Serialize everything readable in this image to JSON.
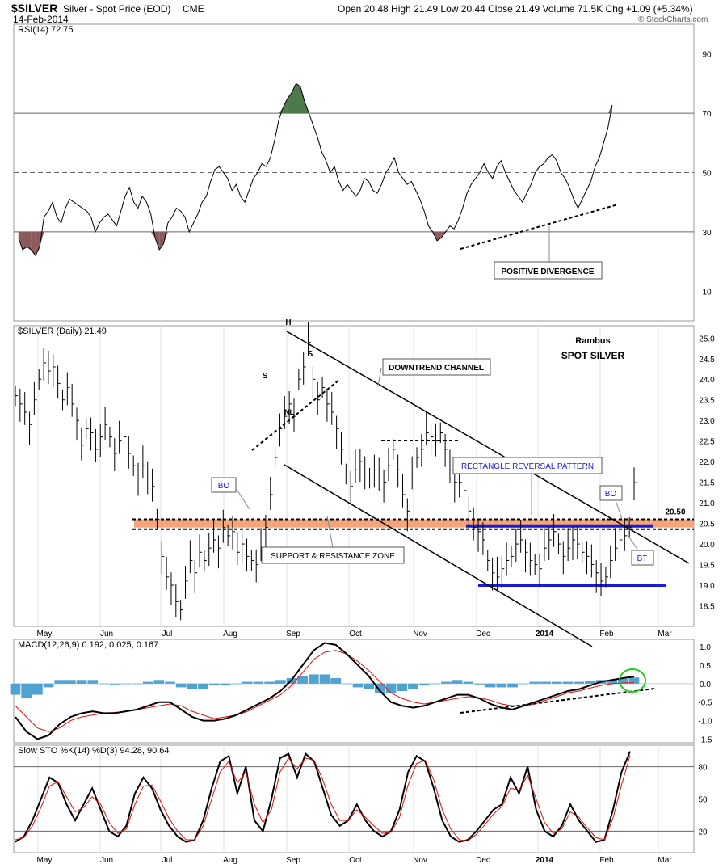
{
  "header": {
    "symbol": "$SILVER",
    "name": "Silver - Spot Price (EOD)",
    "exchange": "CME",
    "date": "14-Feb-2014",
    "quote": "Open 20.48  High 21.49  Low 20.44  Close 21.49  Volume 71.5K  Chg +1.09 (+5.34%)",
    "watermark": "© StockCharts.com"
  },
  "colors": {
    "grid": "#bbbbbb",
    "price_bar": "#000000",
    "rsi_overbought_fill": "#4d7a4d",
    "rsi_oversold_fill": "#8b5a5a",
    "support_zone": "#f4a57a",
    "rectangle": "#1a1adb",
    "macd_hist": "#4fa3d1",
    "signal_line": "#e01010",
    "circle": "#22cc22"
  },
  "chart_data": [
    {
      "id": "rsi",
      "type": "line",
      "title": "RSI(14) 72.75",
      "ylim": [
        0,
        100
      ],
      "y_ticks": [
        "90",
        "70",
        "50",
        "30",
        "10"
      ],
      "reference_lines": [
        70,
        50,
        30
      ],
      "series": [
        {
          "name": "RSI(14)",
          "values": [
            28,
            24,
            25,
            24,
            22,
            25,
            35,
            37,
            40,
            35,
            33,
            38,
            41,
            40,
            39,
            38,
            37,
            35,
            30,
            33,
            35,
            36,
            34,
            32,
            37,
            42,
            45,
            40,
            38,
            42,
            40,
            36,
            28,
            24,
            26,
            33,
            35,
            38,
            37,
            35,
            30,
            33,
            36,
            40,
            42,
            47,
            51,
            52,
            50,
            48,
            44,
            46,
            42,
            40,
            44,
            48,
            50,
            53,
            52,
            55,
            61,
            68,
            72,
            75,
            77,
            80,
            79,
            74,
            70,
            66,
            62,
            57,
            54,
            50,
            52,
            47,
            44,
            46,
            44,
            42,
            44,
            48,
            47,
            44,
            43,
            46,
            50,
            52,
            55,
            50,
            48,
            46,
            47,
            44,
            41,
            37,
            32,
            30,
            27,
            28,
            30,
            32,
            31,
            34,
            38,
            43,
            46,
            48,
            50,
            53,
            50,
            48,
            52,
            54,
            50,
            47,
            44,
            42,
            40,
            43,
            46,
            50,
            52,
            53,
            55,
            56,
            54,
            50,
            48,
            45,
            41,
            38,
            41,
            44,
            47,
            52,
            55,
            60,
            65,
            72.75
          ]
        }
      ]
    },
    {
      "id": "price",
      "type": "bar",
      "title": "$SILVER (Daily) 21.49",
      "ylim": [
        18.0,
        25.3
      ],
      "y_ticks": [
        "25.0",
        "24.5",
        "24.0",
        "23.5",
        "23.0",
        "22.5",
        "22.0",
        "21.5",
        "21.0",
        "20.5",
        "20.0",
        "19.5",
        "19.0",
        "18.5"
      ],
      "x_ticks": [
        "May",
        "Jun",
        "Jul",
        "Aug",
        "Sep",
        "Oct",
        "Nov",
        "Dec",
        "2014",
        "Feb",
        "Mar"
      ],
      "series": [
        {
          "name": "$SILVER",
          "values": [
            23.6,
            23.4,
            23.2,
            22.9,
            23.5,
            24.0,
            24.4,
            24.2,
            24.3,
            23.9,
            23.5,
            23.8,
            23.4,
            23.0,
            22.4,
            22.8,
            22.7,
            22.3,
            22.6,
            22.9,
            22.6,
            22.2,
            22.5,
            22.6,
            22.2,
            21.9,
            21.6,
            21.9,
            21.7,
            21.4,
            20.6,
            19.7,
            19.2,
            19.0,
            18.6,
            18.4,
            19.1,
            19.6,
            19.3,
            19.8,
            19.6,
            19.9,
            20.1,
            19.9,
            20.4,
            20.2,
            20.3,
            19.8,
            20.0,
            19.7,
            19.6,
            19.5,
            19.9,
            20.4,
            21.2,
            22.1,
            22.8,
            23.1,
            23.4,
            23.1,
            24.0,
            24.3,
            24.9,
            24.0,
            23.5,
            23.8,
            23.4,
            23.2,
            22.8,
            22.3,
            21.7,
            21.4,
            21.8,
            22.0,
            21.7,
            21.6,
            21.8,
            21.6,
            21.5,
            21.9,
            22.3,
            21.8,
            21.2,
            20.8,
            21.7,
            22.1,
            22.3,
            22.7,
            22.6,
            22.5,
            22.7,
            22.3,
            21.8,
            21.5,
            21.5,
            21.3,
            20.8,
            20.4,
            20.3,
            20.1,
            19.6,
            19.3,
            19.2,
            19.4,
            19.6,
            19.7,
            20.0,
            20.1,
            19.8,
            19.6,
            19.5,
            19.4,
            19.9,
            20.1,
            20.3,
            20.0,
            19.7,
            19.9,
            20.1,
            20.0,
            19.8,
            19.7,
            19.5,
            19.3,
            19.1,
            19.2,
            19.6,
            19.9,
            20.1,
            20.2,
            20.4,
            21.49
          ]
        }
      ],
      "level_label": "20.50"
    },
    {
      "id": "macd",
      "type": "line",
      "title": "MACD(12,26,9) 0.192, 0.025, 0.167",
      "ylim": [
        -1.6,
        1.2
      ],
      "y_ticks": [
        "1.0",
        "0.5",
        "0.0",
        "-0.5",
        "-1.0",
        "-1.5"
      ],
      "series": [
        {
          "name": "MACD(12,26,9)",
          "values": [
            -0.9,
            -1.3,
            -1.5,
            -1.4,
            -1.1,
            -0.9,
            -0.8,
            -0.75,
            -0.8,
            -0.8,
            -0.75,
            -0.7,
            -0.6,
            -0.5,
            -0.5,
            -0.7,
            -0.9,
            -1.0,
            -1.0,
            -0.95,
            -0.85,
            -0.7,
            -0.55,
            -0.4,
            -0.2,
            0.1,
            0.5,
            0.9,
            1.1,
            1.05,
            0.8,
            0.5,
            0.2,
            -0.2,
            -0.5,
            -0.6,
            -0.65,
            -0.6,
            -0.5,
            -0.4,
            -0.3,
            -0.3,
            -0.4,
            -0.55,
            -0.65,
            -0.7,
            -0.6,
            -0.5,
            -0.4,
            -0.3,
            -0.2,
            -0.15,
            -0.05,
            0.05,
            0.1,
            0.15,
            0.192
          ]
        },
        {
          "name": "signal",
          "values": [
            -0.6,
            -0.9,
            -1.2,
            -1.3,
            -1.2,
            -1.0,
            -0.9,
            -0.85,
            -0.8,
            -0.78,
            -0.75,
            -0.7,
            -0.65,
            -0.6,
            -0.55,
            -0.6,
            -0.75,
            -0.85,
            -0.95,
            -0.9,
            -0.85,
            -0.75,
            -0.6,
            -0.45,
            -0.3,
            -0.05,
            0.3,
            0.65,
            0.85,
            0.9,
            0.8,
            0.6,
            0.35,
            0.05,
            -0.25,
            -0.4,
            -0.5,
            -0.55,
            -0.5,
            -0.45,
            -0.4,
            -0.35,
            -0.38,
            -0.45,
            -0.55,
            -0.6,
            -0.6,
            -0.55,
            -0.45,
            -0.35,
            -0.25,
            -0.2,
            -0.12,
            -0.05,
            0.0,
            0.02,
            0.025
          ]
        },
        {
          "name": "histogram",
          "values": [
            -0.3,
            -0.4,
            -0.3,
            -0.1,
            0.1,
            0.1,
            0.1,
            0.1,
            0.0,
            -0.02,
            0.0,
            0.0,
            0.05,
            0.1,
            0.05,
            -0.1,
            -0.15,
            -0.15,
            -0.05,
            -0.05,
            0.0,
            0.05,
            0.05,
            0.05,
            0.1,
            0.15,
            0.2,
            0.25,
            0.25,
            0.15,
            0.0,
            -0.1,
            -0.15,
            -0.25,
            -0.25,
            -0.2,
            -0.15,
            -0.05,
            0.0,
            0.05,
            0.1,
            0.05,
            -0.02,
            -0.1,
            -0.1,
            -0.1,
            0.0,
            0.05,
            0.05,
            0.05,
            0.05,
            0.05,
            0.07,
            0.1,
            0.1,
            0.13,
            0.167
          ]
        }
      ]
    },
    {
      "id": "sto",
      "type": "line",
      "title": "Slow STO %K(14) %D(3) 94.28, 90.64",
      "ylim": [
        0,
        100
      ],
      "y_ticks": [
        "80",
        "50",
        "20"
      ],
      "reference_lines": [
        80,
        50,
        20
      ],
      "x_ticks": [
        "May",
        "Jun",
        "Jul",
        "Aug",
        "Sep",
        "Oct",
        "Nov",
        "Dec",
        "2014",
        "Feb",
        "Mar"
      ],
      "series": [
        {
          "name": "%K(14)",
          "values": [
            10,
            15,
            30,
            50,
            70,
            65,
            45,
            30,
            45,
            60,
            40,
            20,
            15,
            25,
            55,
            70,
            60,
            40,
            25,
            15,
            10,
            12,
            30,
            60,
            85,
            90,
            55,
            80,
            30,
            20,
            50,
            88,
            92,
            70,
            92,
            85,
            60,
            35,
            25,
            30,
            45,
            30,
            20,
            15,
            20,
            40,
            75,
            90,
            85,
            60,
            30,
            15,
            10,
            12,
            20,
            30,
            40,
            45,
            70,
            55,
            80,
            40,
            20,
            15,
            25,
            45,
            30,
            20,
            10,
            12,
            40,
            75,
            94.28
          ]
        },
        {
          "name": "%D(3)",
          "values": [
            12,
            14,
            25,
            42,
            62,
            66,
            52,
            38,
            42,
            52,
            45,
            28,
            18,
            22,
            45,
            62,
            63,
            48,
            32,
            20,
            12,
            12,
            25,
            50,
            75,
            85,
            65,
            75,
            45,
            28,
            40,
            75,
            88,
            78,
            88,
            86,
            68,
            45,
            30,
            30,
            40,
            33,
            25,
            18,
            19,
            33,
            63,
            83,
            86,
            68,
            40,
            22,
            12,
            11,
            17,
            26,
            36,
            43,
            60,
            58,
            72,
            50,
            28,
            18,
            22,
            38,
            33,
            23,
            14,
            12,
            32,
            63,
            90.64
          ]
        }
      ]
    }
  ],
  "annotations": {
    "rsi_divergence": "POSITIVE DIVERGENCE",
    "credit_1": "Rambus",
    "credit_2": "SPOT SILVER",
    "downtrend": "DOWNTREND CHANNEL",
    "rectangle": "RECTANGLE REVERSAL PATTERN",
    "support": "SUPPORT & RESISTANCE ZONE",
    "bo_left": "BO",
    "bo_right": "BO",
    "bt": "BT",
    "h": "H",
    "s_left": "S",
    "s_right": "S",
    "nl": "NL"
  }
}
